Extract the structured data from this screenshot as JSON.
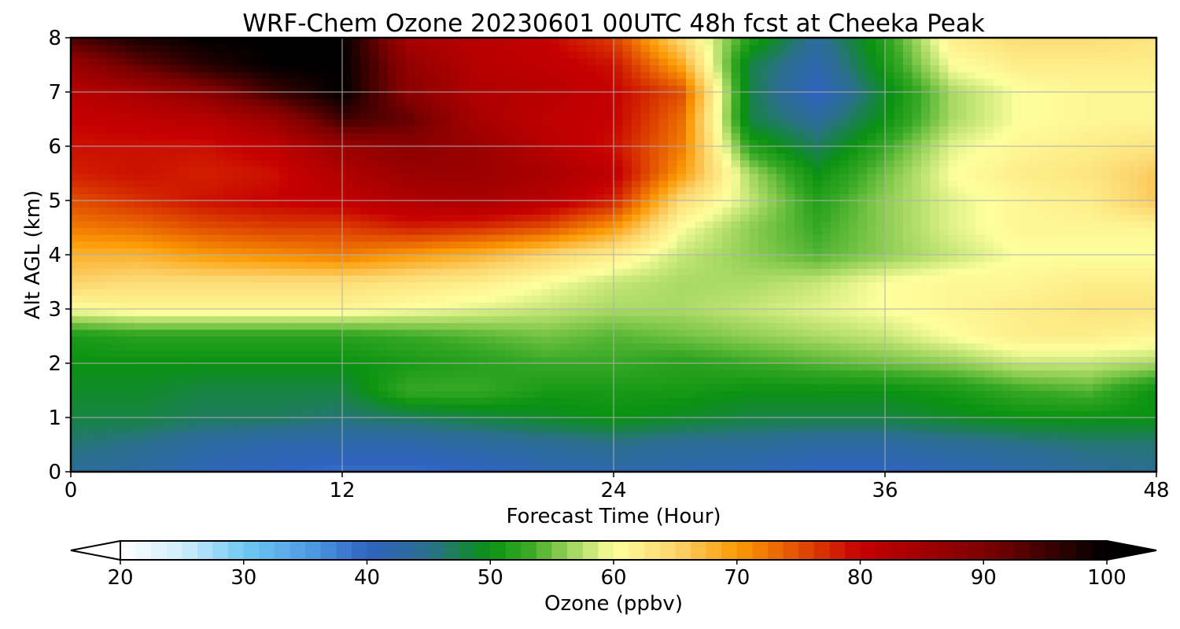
{
  "chart_data": {
    "type": "heatmap",
    "title": "WRF-Chem Ozone  20230601 00UTC 48h fcst at Cheeka Peak",
    "xlabel": "Forecast Time (Hour)",
    "ylabel": "Alt AGL (km)",
    "xlim": [
      0,
      48
    ],
    "ylim": [
      0,
      8
    ],
    "xticks": [
      0,
      12,
      24,
      36,
      48
    ],
    "xtick_labels": [
      "0",
      "12",
      "24",
      "36",
      "48"
    ],
    "yticks": [
      0,
      1,
      2,
      3,
      4,
      5,
      6,
      7,
      8
    ],
    "ytick_labels": [
      "0",
      "1",
      "2",
      "3",
      "4",
      "5",
      "6",
      "7",
      "8"
    ],
    "grid": true,
    "x": [
      0,
      3,
      6,
      9,
      12,
      15,
      18,
      21,
      24,
      27,
      30,
      33,
      36,
      39,
      42,
      45,
      48
    ],
    "y": [
      0,
      0.5,
      1,
      1.5,
      2,
      2.5,
      3,
      3.5,
      4,
      4.5,
      5,
      5.5,
      6,
      6.5,
      7,
      7.5,
      8
    ],
    "z": [
      [
        44,
        43,
        41,
        40,
        39,
        39,
        40,
        41,
        42,
        42,
        41,
        40,
        40,
        41,
        42,
        44,
        45
      ],
      [
        46,
        45,
        43,
        42,
        42,
        42,
        43,
        44,
        45,
        44,
        44,
        43,
        43,
        44,
        45,
        46,
        46
      ],
      [
        48,
        48,
        47,
        47,
        46,
        47,
        48,
        49,
        50,
        49,
        48,
        48,
        48,
        49,
        50,
        50,
        50
      ],
      [
        49,
        49,
        48,
        48,
        48,
        53,
        53,
        51,
        51,
        51,
        50,
        50,
        50,
        51,
        53,
        54,
        50
      ],
      [
        50,
        50,
        50,
        50,
        50,
        51,
        52,
        53,
        53,
        52,
        53,
        54,
        55,
        56,
        58,
        58,
        57
      ],
      [
        51,
        52,
        52,
        52,
        52,
        53,
        54,
        55,
        54,
        55,
        56,
        57,
        58,
        60,
        62,
        62,
        61
      ],
      [
        60,
        61,
        61,
        61,
        61,
        60,
        59,
        58,
        57,
        57,
        58,
        59,
        60,
        61,
        62,
        63,
        63
      ],
      [
        65,
        64,
        64,
        64,
        64,
        63,
        62,
        60,
        58,
        57,
        57,
        58,
        60,
        61,
        61,
        62,
        62
      ],
      [
        68,
        68,
        70,
        71,
        72,
        70,
        68,
        65,
        62,
        58,
        56,
        54,
        56,
        58,
        60,
        60,
        60
      ],
      [
        72,
        73,
        75,
        76,
        76,
        78,
        77,
        75,
        70,
        60,
        56,
        53,
        56,
        59,
        61,
        61,
        61
      ],
      [
        75,
        77,
        79,
        80,
        81,
        83,
        84,
        82,
        78,
        64,
        58,
        52,
        56,
        59,
        61,
        62,
        66
      ],
      [
        78,
        79,
        78,
        79,
        83,
        86,
        86,
        84,
        81,
        70,
        57,
        50,
        55,
        60,
        62,
        63,
        66
      ],
      [
        79,
        79,
        79,
        81,
        86,
        88,
        86,
        82,
        79,
        72,
        52,
        47,
        53,
        59,
        61,
        62,
        63
      ],
      [
        80,
        81,
        82,
        86,
        95,
        92,
        84,
        81,
        80,
        73,
        48,
        44,
        50,
        57,
        60,
        61,
        61
      ],
      [
        82,
        84,
        88,
        95,
        100,
        88,
        83,
        82,
        80,
        75,
        48,
        40,
        49,
        57,
        60,
        61,
        61
      ],
      [
        86,
        92,
        97,
        100,
        100,
        87,
        82,
        81,
        79,
        69,
        48,
        42,
        51,
        60,
        62,
        62,
        62
      ],
      [
        94,
        98,
        100,
        100,
        100,
        84,
        82,
        80,
        76,
        64,
        52,
        44,
        52,
        62,
        64,
        64,
        63
      ]
    ],
    "colorbar": {
      "label": "Ozone  (ppbv)",
      "min": 20,
      "max": 100,
      "extend": "both",
      "tick_values": [
        20,
        30,
        40,
        50,
        60,
        70,
        80,
        90,
        100
      ],
      "tick_labels": [
        "20",
        "30",
        "40",
        "50",
        "60",
        "70",
        "80",
        "90",
        "100"
      ],
      "stops": [
        {
          "v": 20,
          "c": "#ffffff"
        },
        {
          "v": 25,
          "c": "#cfeefb"
        },
        {
          "v": 30,
          "c": "#6fc8f2"
        },
        {
          "v": 36,
          "c": "#4a95e0"
        },
        {
          "v": 40,
          "c": "#2f63c0"
        },
        {
          "v": 45,
          "c": "#2b6e8e"
        },
        {
          "v": 50,
          "c": "#0a9211"
        },
        {
          "v": 53,
          "c": "#36a824"
        },
        {
          "v": 56,
          "c": "#8ece52"
        },
        {
          "v": 60,
          "c": "#feff9e"
        },
        {
          "v": 65,
          "c": "#fcd46c"
        },
        {
          "v": 70,
          "c": "#fc9a05"
        },
        {
          "v": 75,
          "c": "#e24f00"
        },
        {
          "v": 80,
          "c": "#c60000"
        },
        {
          "v": 90,
          "c": "#7d0000"
        },
        {
          "v": 100,
          "c": "#000000"
        }
      ]
    }
  }
}
